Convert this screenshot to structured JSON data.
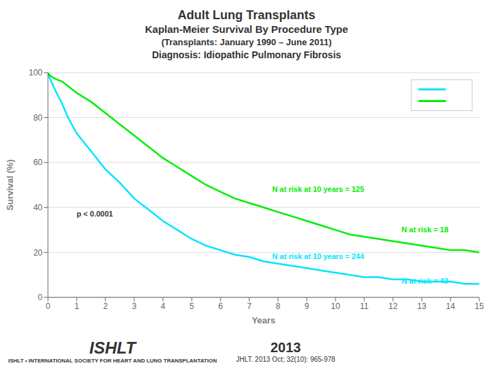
{
  "chart_data": {
    "type": "line",
    "title": "Adult Lung Transplants",
    "subtitle": [
      "Kaplan-Meier Survival By Procedure Type",
      "(Transplants: January 1990 – June 2011)",
      "Diagnosis: Idiopathic Pulmonary Fibrosis"
    ],
    "x_label": "Years",
    "y_label": "Survival (%)",
    "xlim": [
      0,
      15
    ],
    "ylim": [
      0,
      100
    ],
    "xticks": [
      0,
      1,
      2,
      3,
      4,
      5,
      6,
      7,
      8,
      9,
      10,
      11,
      12,
      13,
      14,
      15
    ],
    "yticks": [
      0,
      20,
      40,
      60,
      80,
      100
    ],
    "grid": "y",
    "legend": "upper right",
    "series": [
      {
        "color": "#00e5ff",
        "x": [
          0,
          0.05,
          0.15,
          0.3,
          0.5,
          0.7,
          1.0,
          1.5,
          2.0,
          2.5,
          3.0,
          3.5,
          4.0,
          4.5,
          5.0,
          5.5,
          6.0,
          6.5,
          7.0,
          7.5,
          8.0,
          8.5,
          9.0,
          9.5,
          10.0,
          10.5,
          11.0,
          11.5,
          12.0,
          12.5,
          13.0,
          13.5,
          14.0,
          14.5,
          15.0
        ],
        "values": [
          100,
          98,
          95,
          91,
          86,
          80,
          73,
          65,
          57,
          51,
          44,
          39,
          34,
          30,
          26,
          23,
          21,
          19,
          18,
          16,
          15,
          14,
          13,
          12,
          11,
          10,
          9,
          9,
          8,
          8,
          7,
          7,
          7,
          6,
          6
        ]
      },
      {
        "color": "#00ee00",
        "x": [
          0,
          0.05,
          0.15,
          0.3,
          0.5,
          0.7,
          1.0,
          1.5,
          2.0,
          2.5,
          3.0,
          3.5,
          4.0,
          4.5,
          5.0,
          5.5,
          6.0,
          6.5,
          7.0,
          7.5,
          8.0,
          8.5,
          9.0,
          9.5,
          10.0,
          10.5,
          11.0,
          11.5,
          12.0,
          12.5,
          13.0,
          13.5,
          14.0,
          14.5,
          15.0
        ],
        "values": [
          100,
          99,
          98,
          97,
          96,
          94,
          91,
          87,
          82,
          77,
          72,
          67,
          62,
          58,
          54,
          50,
          47,
          44,
          42,
          40,
          38,
          36,
          34,
          32,
          30,
          28,
          27,
          26,
          25,
          24,
          23,
          22,
          21,
          21,
          20
        ]
      }
    ],
    "annotations": [
      {
        "text": "N at risk at 10 years = 125",
        "x": 7.8,
        "y": 47,
        "color": "#00ee00"
      },
      {
        "text": "N at risk at 10 years = 244",
        "x": 7.8,
        "y": 17,
        "color": "#00e5ff"
      },
      {
        "text": "N at risk = 18",
        "x": 12.3,
        "y": 29,
        "color": "#00ee00"
      },
      {
        "text": "N at risk = 43",
        "x": 12.3,
        "y": 6,
        "color": "#00e5ff"
      },
      {
        "text": "p < 0.0001",
        "x": 1.0,
        "y": 36
      },
      {
        "text": "ISHLT"
      },
      {
        "text": "ISHLT • INTERNATIONAL SOCIETY FOR HEART AND LUNG TRANSPLANTATION"
      },
      {
        "text": "2013"
      },
      {
        "text": "JHLT. 2013 Oct; 32(10): 965-978"
      }
    ]
  }
}
